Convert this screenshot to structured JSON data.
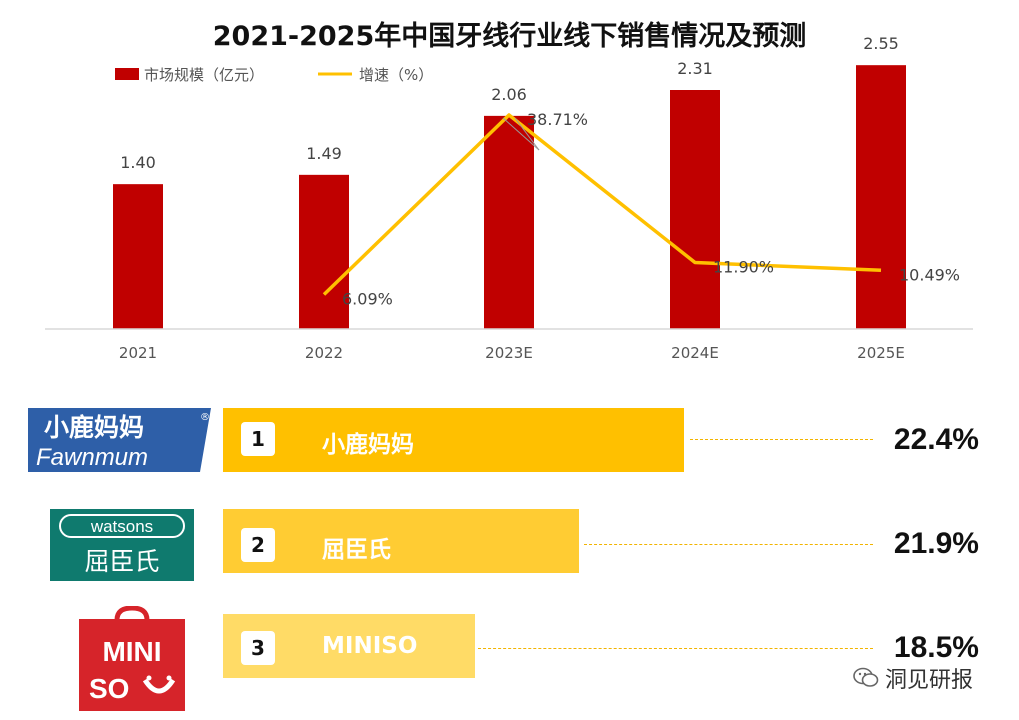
{
  "chart_data": {
    "type": "bar",
    "title": "2021-2025年中国牙线行业线下销售情况及预测",
    "categories": [
      "2021",
      "2022",
      "2023E",
      "2024E",
      "2025E"
    ],
    "series": [
      {
        "name": "市场规模（亿元）",
        "type": "bar",
        "color": "#c00000",
        "values": [
          1.4,
          1.49,
          2.06,
          2.31,
          2.55
        ],
        "labels": [
          "1.40",
          "1.49",
          "2.06",
          "2.31",
          "2.55"
        ]
      },
      {
        "name": "增速（%）",
        "type": "line",
        "color": "#ffc000",
        "values": [
          null,
          6.09,
          38.71,
          11.9,
          10.49
        ],
        "labels": [
          "",
          "6.09%",
          "38.71%",
          "11.90%",
          "10.49%"
        ]
      }
    ],
    "bar_axis_range": [
      0,
      2.6
    ],
    "line_axis_range": [
      0,
      40
    ],
    "legend_position": "top-left",
    "grid": false
  },
  "ranking": [
    {
      "rank": "1",
      "brand": "小鹿妈妈",
      "share": "22.4%",
      "share_value": 22.4,
      "bar_color": "#ffc000",
      "logo": {
        "line1": "小鹿妈妈",
        "line2": "Fawnmum",
        "mark": "®"
      }
    },
    {
      "rank": "2",
      "brand": "屈臣氏",
      "share": "21.9%",
      "share_value": 21.9,
      "bar_color": "#ffcc33",
      "logo": {
        "line1": "watsons",
        "line2": "屈臣氏"
      }
    },
    {
      "rank": "3",
      "brand": "MINISO",
      "share": "18.5%",
      "share_value": 18.5,
      "bar_color": "#ffdb66",
      "logo": {
        "line1": "MINI",
        "line2": "SO"
      }
    }
  ],
  "watermark": {
    "text": "洞见研报",
    "icon": "wechat-icon"
  }
}
